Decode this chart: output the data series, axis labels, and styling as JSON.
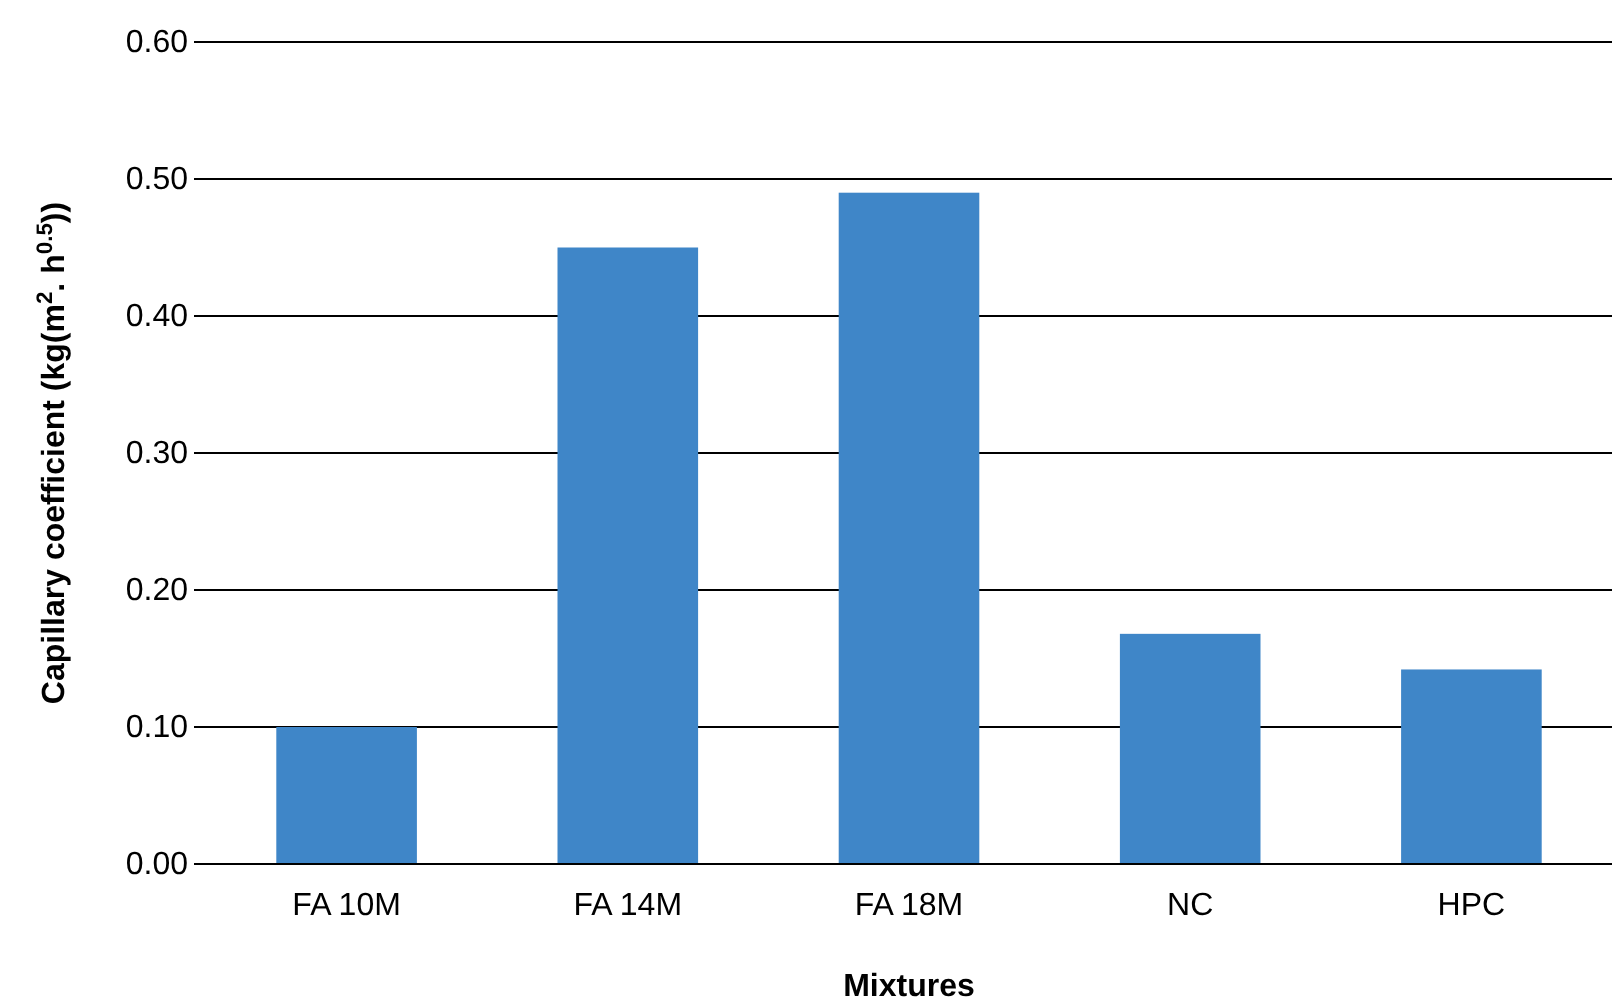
{
  "chart_data": {
    "type": "bar",
    "xlabel": "Mixtures",
    "ylabel": "Capillary coefficient (kg(m$^{2}$. h$^{0.5}$))",
    "categories": [
      "FA 10M",
      "FA 14M",
      "FA 18M",
      "NC",
      "HPC"
    ],
    "values": [
      0.1,
      0.45,
      0.49,
      0.168,
      0.142
    ],
    "color": "#3f86c8",
    "ylim": [
      0,
      0.6
    ],
    "yticks": [
      {
        "value": 0,
        "label": "0.00"
      },
      {
        "value": 0.1,
        "label": "0.10"
      },
      {
        "value": 0.2,
        "label": "0.20"
      },
      {
        "value": 0.3,
        "label": "0.30"
      },
      {
        "value": 0.4,
        "label": "0.40"
      },
      {
        "value": 0.5,
        "label": "0.50"
      },
      {
        "value": 0.6,
        "label": "0.60"
      }
    ],
    "grid": "y"
  }
}
